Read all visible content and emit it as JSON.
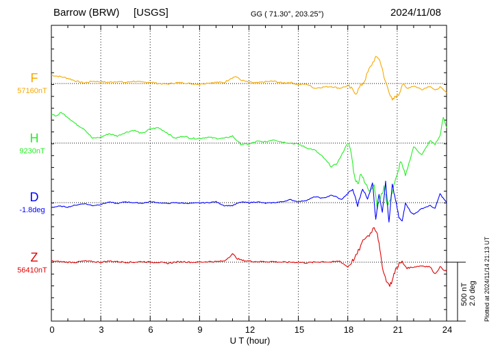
{
  "header": {
    "station": "Barrow (BRW)",
    "source": "[USGS]",
    "coords": "GG ( 71.30°, 203.25°)",
    "date": "2024/11/08"
  },
  "scale_bar": {
    "line1": "500 nT",
    "line2": "2.0 deg"
  },
  "plot_note": "Plotted at 2024/11/14 21:13 UT",
  "chart_data": {
    "type": "line",
    "xlabel": "U T (hour)",
    "xlim": [
      0,
      24
    ],
    "xticks": [
      "0",
      "3",
      "6",
      "9",
      "12",
      "15",
      "18",
      "21",
      "24"
    ],
    "grid": true,
    "series": [
      {
        "name": "F",
        "baseline_label": "57160nT",
        "color": "#f5a800",
        "unit": "nT offset from baseline",
        "x": [
          0,
          0.5,
          1,
          1.5,
          2,
          2.5,
          3,
          3.5,
          4,
          4.5,
          5,
          5.5,
          6,
          6.5,
          7,
          7.5,
          8,
          8.5,
          9,
          9.5,
          10,
          10.5,
          10.9,
          11.2,
          11.5,
          12,
          12.5,
          13,
          13.5,
          14,
          14.5,
          15,
          15.5,
          16,
          16.5,
          17,
          17.5,
          18,
          18.5,
          19,
          19.3,
          19.6,
          19.8,
          20,
          20.2,
          20.5,
          20.7,
          20.9,
          21.1,
          21.3,
          21.6,
          22,
          22.5,
          23,
          23.3,
          23.6,
          24
        ],
        "values": [
          70,
          60,
          45,
          20,
          5,
          20,
          15,
          10,
          18,
          8,
          20,
          10,
          12,
          0,
          -5,
          5,
          8,
          -2,
          -5,
          5,
          10,
          8,
          45,
          60,
          30,
          10,
          5,
          15,
          20,
          5,
          10,
          -10,
          -5,
          -40,
          -30,
          -25,
          -40,
          -20,
          -80,
          20,
          120,
          200,
          230,
          180,
          50,
          -60,
          -150,
          -110,
          -90,
          -10,
          -40,
          -20,
          -50,
          -20,
          -60,
          -30,
          -80
        ]
      },
      {
        "name": "H",
        "baseline_label": "9230nT",
        "color": "#22ee22",
        "unit": "nT offset from baseline",
        "x": [
          0,
          0.3,
          0.6,
          1,
          1.5,
          2,
          2.5,
          3,
          3.5,
          4,
          4.5,
          5,
          5.5,
          6,
          6.5,
          7,
          7.5,
          8,
          8.5,
          9,
          9.5,
          10,
          10.5,
          11,
          11.5,
          12,
          12.5,
          13,
          13.5,
          14,
          14.5,
          15,
          15.5,
          16,
          16.5,
          17,
          17.3,
          17.6,
          18,
          18.2,
          18.4,
          18.6,
          18.8,
          19,
          19.3,
          19.6,
          19.8,
          20,
          20.2,
          20.4,
          20.6,
          20.8,
          21,
          21.2,
          21.5,
          22,
          22.5,
          23,
          23.3,
          23.6,
          23.8,
          24
        ],
        "values": [
          250,
          230,
          260,
          220,
          160,
          120,
          40,
          50,
          80,
          60,
          90,
          110,
          80,
          120,
          130,
          90,
          40,
          60,
          40,
          40,
          50,
          40,
          40,
          60,
          -10,
          -10,
          15,
          10,
          30,
          10,
          0,
          -10,
          -40,
          -60,
          -120,
          -200,
          -180,
          -110,
          5,
          -80,
          -280,
          -350,
          -250,
          -330,
          -400,
          -350,
          -550,
          -460,
          -380,
          -520,
          -480,
          -350,
          -280,
          -150,
          -280,
          -30,
          -100,
          20,
          -10,
          60,
          220,
          130
        ]
      },
      {
        "name": "D",
        "baseline_label": "-1.8deg",
        "color": "#0000ff",
        "unit": "deg offset from baseline",
        "x": [
          0,
          0.5,
          1,
          1.5,
          2,
          2.5,
          3,
          3.5,
          4,
          4.5,
          5,
          5.5,
          6,
          6.5,
          7,
          7.5,
          8,
          8.5,
          9,
          9.5,
          10,
          10.5,
          11,
          11.5,
          12,
          12.5,
          13,
          13.5,
          14,
          14.5,
          15,
          15.5,
          16,
          16.5,
          17,
          17.3,
          17.6,
          18,
          18.3,
          18.6,
          18.9,
          19.2,
          19.5,
          19.7,
          19.9,
          20.1,
          20.3,
          20.5,
          20.7,
          20.9,
          21.1,
          21.3,
          21.5,
          21.8,
          22,
          22.5,
          23,
          23.3,
          23.6,
          24
        ],
        "values": [
          -0.16,
          -0.12,
          -0.15,
          -0.08,
          -0.03,
          -0.1,
          -0.06,
          0.02,
          -0.03,
          0.03,
          0.0,
          -0.02,
          0.03,
          0.0,
          -0.03,
          0.0,
          -0.02,
          -0.02,
          -0.01,
          0.0,
          0.03,
          -0.1,
          -0.1,
          0.02,
          0.0,
          0.03,
          -0.02,
          0.0,
          0.03,
          0.1,
          0.03,
          0.08,
          0.2,
          0.15,
          0.25,
          0.2,
          0.1,
          0.3,
          0.45,
          -0.1,
          0.5,
          0.1,
          0.7,
          -0.55,
          0.3,
          -0.3,
          0.7,
          -0.7,
          0.6,
          0.1,
          -0.5,
          -0.65,
          0.0,
          -0.3,
          -0.4,
          -0.2,
          -0.1,
          -0.2,
          0.3,
          0.0
        ]
      },
      {
        "name": "Z",
        "baseline_label": "56410nT",
        "color": "#e00000",
        "unit": "nT offset from baseline",
        "x": [
          0,
          0.5,
          1,
          1.5,
          2,
          2.5,
          3,
          3.5,
          4,
          4.5,
          5,
          5.5,
          6,
          6.5,
          7,
          7.5,
          8,
          8.5,
          9,
          9.5,
          10,
          10.5,
          11,
          11.3,
          11.6,
          12,
          12.5,
          13,
          13.5,
          14,
          14.5,
          15,
          15.5,
          16,
          16.5,
          17,
          17.5,
          18,
          18.5,
          19,
          19.3,
          19.6,
          19.8,
          20,
          20.2,
          20.5,
          20.7,
          20.9,
          21.1,
          21.3,
          21.6,
          22,
          22.5,
          23,
          23.3,
          23.6,
          24
        ],
        "values": [
          10,
          5,
          0,
          0,
          10,
          5,
          0,
          10,
          5,
          0,
          0,
          5,
          0,
          0,
          -10,
          0,
          5,
          0,
          0,
          5,
          5,
          10,
          70,
          30,
          15,
          10,
          5,
          5,
          5,
          0,
          0,
          0,
          -5,
          0,
          5,
          0,
          10,
          -40,
          50,
          200,
          230,
          300,
          250,
          50,
          -100,
          -200,
          -160,
          -60,
          -20,
          0,
          -50,
          -40,
          -30,
          -40,
          -100,
          -40,
          -80
        ]
      }
    ]
  }
}
